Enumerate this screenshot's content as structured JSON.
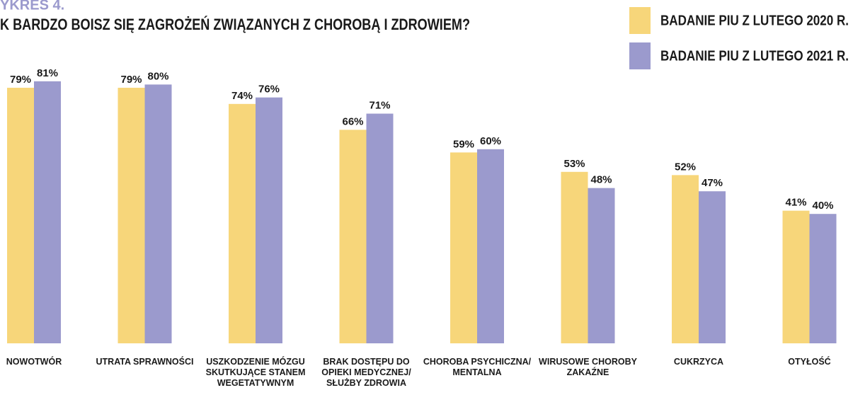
{
  "chart_data": {
    "type": "bar",
    "title": "YKRES 4.",
    "subtitle": "K BARDZO BOISZ SIĘ ZAGROŻEŃ ZWIĄZANYCH Z CHOROBĄ I ZDROWIEM?",
    "categories": [
      "NOWOTWÓR",
      "UTRATA SPRAWNOŚCI",
      "USZKODZENIE MÓZGU\nSKUTKUJĄCE STANEM\nWEGETATYWNYM",
      "BRAK DOSTĘPU DO\nOPIEKI MEDYCZNEJ/\nSŁUŻBY ZDROWIA",
      "CHOROBA PSYCHICZNA/\nMENTALNA",
      "WIRUSOWE CHOROBY\nZAKAŹNE",
      "CUKRZYCA",
      "OTYŁOŚĆ"
    ],
    "series": [
      {
        "name": "BADANIE PIU Z LUTEGO 2020 R.",
        "color": "#f7d67a",
        "values": [
          79,
          79,
          74,
          66,
          59,
          53,
          52,
          41
        ],
        "value_labels": [
          "79%",
          "79%",
          "74%",
          "66%",
          "59%",
          "53%",
          "52%",
          "41%"
        ]
      },
      {
        "name": "BADANIE PIU Z LUTEGO 2021 R.",
        "color": "#9b9acd",
        "values": [
          81,
          80,
          76,
          71,
          60,
          48,
          47,
          40
        ],
        "value_labels": [
          "81%",
          "80%",
          "76%",
          "71%",
          "60%",
          "48%",
          "47%",
          "40%"
        ]
      }
    ],
    "ylim": [
      0,
      100
    ]
  }
}
